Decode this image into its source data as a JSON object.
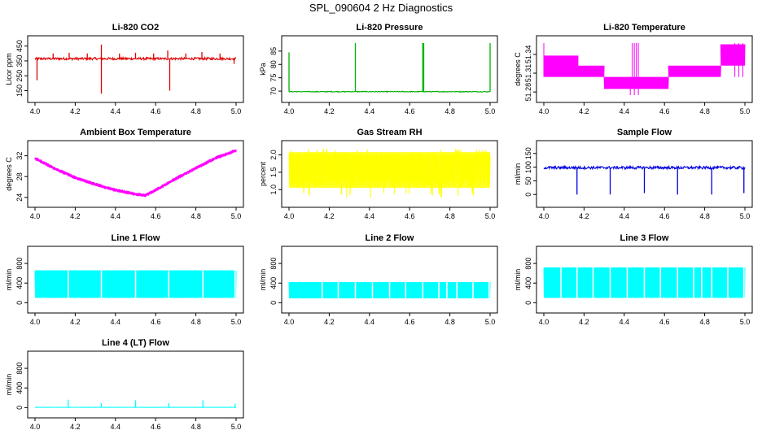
{
  "suptitle": "SPL_090604  2 Hz Diagnostics",
  "chart_data": [
    {
      "type": "line",
      "title": "Li-820 CO2",
      "ylabel": "Licor ppm",
      "color": "#e00000",
      "xlim": [
        4.0,
        5.0
      ],
      "ylim": [
        120,
        470
      ],
      "xticks": [
        "4.0",
        "4.2",
        "4.4",
        "4.6",
        "4.8",
        "5.0"
      ],
      "xtick_values": [
        4.0,
        4.2,
        4.4,
        4.6,
        4.8,
        5.0
      ],
      "yticks": [
        "150",
        "250",
        "350",
        "450"
      ],
      "ytick_values": [
        150,
        250,
        350,
        450
      ],
      "baseline": 365,
      "noise": 8,
      "spikes": [
        {
          "x": 4.01,
          "y": 220
        },
        {
          "x": 4.09,
          "y": 400
        },
        {
          "x": 4.17,
          "y": 405
        },
        {
          "x": 4.26,
          "y": 400
        },
        {
          "x": 4.33,
          "y": 460
        },
        {
          "x": 4.33,
          "y": 130
        },
        {
          "x": 4.42,
          "y": 400
        },
        {
          "x": 4.5,
          "y": 405
        },
        {
          "x": 4.59,
          "y": 400
        },
        {
          "x": 4.66,
          "y": 420
        },
        {
          "x": 4.67,
          "y": 150
        },
        {
          "x": 4.75,
          "y": 400
        },
        {
          "x": 4.83,
          "y": 410
        },
        {
          "x": 4.92,
          "y": 400
        },
        {
          "x": 4.99,
          "y": 330
        }
      ]
    },
    {
      "type": "line",
      "title": "Li-820 Pressure",
      "ylabel": "kPa",
      "color": "#00b000",
      "xlim": [
        4.0,
        5.0
      ],
      "ylim": [
        68.5,
        88
      ],
      "xticks": [
        "4.0",
        "4.2",
        "4.4",
        "4.6",
        "4.8",
        "5.0"
      ],
      "xtick_values": [
        4.0,
        4.2,
        4.4,
        4.6,
        4.8,
        5.0
      ],
      "yticks": [
        "70",
        "75",
        "80",
        "85"
      ],
      "ytick_values": [
        70,
        75,
        80,
        85
      ],
      "baseline": 69.8,
      "noise": 0.15,
      "spikes": [
        {
          "x": 4.0,
          "y": 84.5
        },
        {
          "x": 4.33,
          "y": 88
        },
        {
          "x": 4.665,
          "y": 88
        },
        {
          "x": 4.67,
          "y": 88
        },
        {
          "x": 5.0,
          "y": 88
        }
      ]
    },
    {
      "type": "line",
      "title": "Li-820 Temperature",
      "ylabel": "degrees C",
      "color": "#ff00ff",
      "xlim": [
        4.0,
        5.0
      ],
      "ylim": [
        51.275,
        51.358
      ],
      "xticks": [
        "4.0",
        "4.2",
        "4.4",
        "4.6",
        "4.8",
        "5.0"
      ],
      "xtick_values": [
        4.0,
        4.2,
        4.4,
        4.6,
        4.8,
        5.0
      ],
      "yticks": [
        "51.28",
        "51.31",
        "51.34"
      ],
      "ytick_values": [
        51.28,
        51.31,
        51.34
      ],
      "segments": [
        {
          "x0": 4.0,
          "x1": 4.17,
          "lo": 51.304,
          "hi": 51.338
        },
        {
          "x0": 4.17,
          "x1": 4.3,
          "lo": 51.304,
          "hi": 51.322
        },
        {
          "x0": 4.3,
          "x1": 4.62,
          "lo": 51.285,
          "hi": 51.304
        },
        {
          "x0": 4.62,
          "x1": 4.88,
          "lo": 51.304,
          "hi": 51.322
        },
        {
          "x0": 4.88,
          "x1": 5.0,
          "lo": 51.322,
          "hi": 51.356
        }
      ]
    },
    {
      "type": "line",
      "title": "Ambient Box Temperature",
      "ylabel": "degrees C",
      "color": "#ff00ff",
      "xlim": [
        4.0,
        5.0
      ],
      "ylim": [
        23.5,
        33.5
      ],
      "xticks": [
        "4.0",
        "4.2",
        "4.4",
        "4.6",
        "4.8",
        "5.0"
      ],
      "xtick_values": [
        4.0,
        4.2,
        4.4,
        4.6,
        4.8,
        5.0
      ],
      "yticks": [
        "24",
        "28",
        "32"
      ],
      "ytick_values": [
        24,
        28,
        32
      ],
      "curve": [
        [
          4.0,
          31.5
        ],
        [
          4.1,
          29.5
        ],
        [
          4.2,
          27.8
        ],
        [
          4.3,
          26.5
        ],
        [
          4.4,
          25.4
        ],
        [
          4.5,
          24.6
        ],
        [
          4.55,
          24.4
        ],
        [
          4.6,
          25.4
        ],
        [
          4.7,
          27.6
        ],
        [
          4.8,
          29.6
        ],
        [
          4.9,
          31.6
        ],
        [
          5.0,
          33.0
        ]
      ],
      "noise": 0.35
    },
    {
      "type": "line",
      "title": "Gas Stream RH",
      "ylabel": "percent",
      "color": "#ffff00",
      "xlim": [
        4.0,
        5.0
      ],
      "ylim": [
        0.7,
        2.2
      ],
      "xticks": [
        "4.0",
        "4.2",
        "4.4",
        "4.6",
        "4.8",
        "5.0"
      ],
      "xtick_values": [
        4.0,
        4.2,
        4.4,
        4.6,
        4.8,
        5.0
      ],
      "yticks": [
        "1.0",
        "1.5",
        "2.0"
      ],
      "ytick_values": [
        1.0,
        1.5,
        2.0
      ],
      "band": {
        "lo": 1.05,
        "hi": 2.08,
        "extreme_lo": 0.75,
        "extreme_hi": 2.18
      }
    },
    {
      "type": "line",
      "title": "Sample Flow",
      "ylabel": "ml/min",
      "color": "#0000e0",
      "xlim": [
        4.0,
        5.0
      ],
      "ylim": [
        -20,
        170
      ],
      "xticks": [
        "4.0",
        "4.2",
        "4.4",
        "4.6",
        "4.8",
        "5.0"
      ],
      "xtick_values": [
        4.0,
        4.2,
        4.4,
        4.6,
        4.8,
        5.0
      ],
      "yticks": [
        "0",
        "50",
        "100",
        "150"
      ],
      "ytick_values": [
        0,
        50,
        100,
        150
      ],
      "baseline": 98,
      "noise": 5,
      "spikes": [
        {
          "x": 4.165,
          "y": 0
        },
        {
          "x": 4.33,
          "y": 0
        },
        {
          "x": 4.5,
          "y": 5
        },
        {
          "x": 4.665,
          "y": 0
        },
        {
          "x": 4.835,
          "y": 0
        },
        {
          "x": 4.995,
          "y": 5
        }
      ]
    },
    {
      "type": "line",
      "title": "Line 1 Flow",
      "ylabel": "ml/min",
      "color": "#00ffff",
      "xlim": [
        4.0,
        5.0
      ],
      "ylim": [
        -60,
        1000
      ],
      "xticks": [
        "4.0",
        "4.2",
        "4.4",
        "4.6",
        "4.8",
        "5.0"
      ],
      "xtick_values": [
        4.0,
        4.2,
        4.4,
        4.6,
        4.8,
        5.0
      ],
      "yticks": [
        "0",
        "400",
        "800"
      ],
      "ytick_values": [
        0,
        400,
        800
      ],
      "band": {
        "lo": 100,
        "hi": 660
      },
      "gaps": [
        4.165,
        4.33,
        4.5,
        4.665,
        4.835,
        4.995
      ]
    },
    {
      "type": "line",
      "title": "Line 2 Flow",
      "ylabel": "ml/min",
      "color": "#00ffff",
      "xlim": [
        4.0,
        5.0
      ],
      "ylim": [
        -60,
        1000
      ],
      "xticks": [
        "4.0",
        "4.2",
        "4.4",
        "4.6",
        "4.8",
        "5.0"
      ],
      "xtick_values": [
        4.0,
        4.2,
        4.4,
        4.6,
        4.8,
        5.0
      ],
      "yticks": [
        "0",
        "400",
        "800"
      ],
      "ytick_values": [
        0,
        400,
        800
      ],
      "band": {
        "lo": 90,
        "hi": 420
      },
      "gaps": [
        4.165,
        4.245,
        4.33,
        4.415,
        4.5,
        4.58,
        4.665,
        4.745,
        4.785,
        4.835,
        4.915,
        4.995
      ]
    },
    {
      "type": "line",
      "title": "Line 3 Flow",
      "ylabel": "ml/min",
      "color": "#00ffff",
      "xlim": [
        4.0,
        5.0
      ],
      "ylim": [
        -60,
        1000
      ],
      "xticks": [
        "4.0",
        "4.2",
        "4.4",
        "4.6",
        "4.8",
        "5.0"
      ],
      "xtick_values": [
        4.0,
        4.2,
        4.4,
        4.6,
        4.8,
        5.0
      ],
      "yticks": [
        "0",
        "400",
        "800"
      ],
      "ytick_values": [
        0,
        400,
        800
      ],
      "band": {
        "lo": 100,
        "hi": 720
      },
      "gaps": [
        4.085,
        4.165,
        4.245,
        4.33,
        4.415,
        4.5,
        4.58,
        4.665,
        4.745,
        4.785,
        4.835,
        4.915,
        4.995
      ]
    },
    {
      "type": "line",
      "title": "Line 4 (LT) Flow",
      "ylabel": "ml/min",
      "color": "#00ffff",
      "xlim": [
        4.0,
        5.0
      ],
      "ylim": [
        -60,
        1000
      ],
      "xticks": [
        "4.0",
        "4.2",
        "4.4",
        "4.6",
        "4.8",
        "5.0"
      ],
      "xtick_values": [
        4.0,
        4.2,
        4.4,
        4.6,
        4.8,
        5.0
      ],
      "yticks": [
        "0",
        "400",
        "800"
      ],
      "ytick_values": [
        0,
        400,
        800
      ],
      "baseline": 5,
      "noise": 3,
      "spikes": [
        {
          "x": 4.165,
          "y": 160
        },
        {
          "x": 4.33,
          "y": 90
        },
        {
          "x": 4.5,
          "y": 150
        },
        {
          "x": 4.665,
          "y": 90
        },
        {
          "x": 4.835,
          "y": 150
        },
        {
          "x": 4.995,
          "y": 80
        }
      ]
    }
  ]
}
